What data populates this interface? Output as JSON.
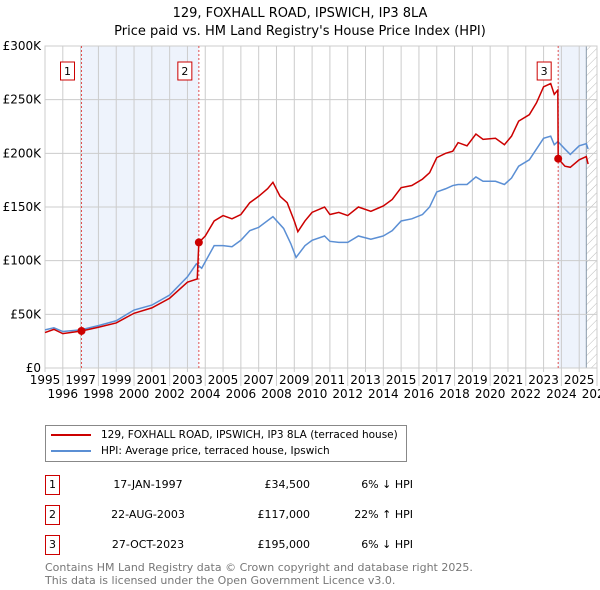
{
  "chart_data": {
    "type": "line",
    "title": "129, FOXHALL ROAD, IPSWICH, IP3 8LA",
    "subtitle": "Price paid vs. HM Land Registry's House Price Index (HPI)",
    "xlim": [
      1995,
      2026
    ],
    "ylim": [
      0,
      300000
    ],
    "x_ticks": [
      "1995",
      "1996",
      "1997",
      "1998",
      "1999",
      "2000",
      "2001",
      "2002",
      "2003",
      "2004",
      "2005",
      "2006",
      "2007",
      "2008",
      "2009",
      "2010",
      "2011",
      "2012",
      "2013",
      "2014",
      "2015",
      "2016",
      "2017",
      "2018",
      "2019",
      "2020",
      "2021",
      "2022",
      "2023",
      "2024",
      "2025",
      "2026"
    ],
    "y_ticks": [
      {
        "v": 0,
        "label": "£0"
      },
      {
        "v": 50000,
        "label": "£50K"
      },
      {
        "v": 100000,
        "label": "£100K"
      },
      {
        "v": 150000,
        "label": "£150K"
      },
      {
        "v": 200000,
        "label": "£200K"
      },
      {
        "v": 250000,
        "label": "£250K"
      },
      {
        "v": 300000,
        "label": "£300K"
      }
    ],
    "grid": true,
    "series": [
      {
        "name": "129, FOXHALL ROAD, IPSWICH, IP3 8LA (terraced house)",
        "color": "#cc0000",
        "x": [
          1995,
          1995.5,
          1996,
          1997.05,
          1998,
          1999,
          2000,
          2001,
          2002,
          2003,
          2003.55,
          2003.64,
          2004,
          2004.5,
          2005,
          2005.5,
          2006,
          2006.5,
          2007,
          2007.5,
          2007.8,
          2008.2,
          2008.6,
          2009,
          2009.2,
          2009.6,
          2010,
          2010.7,
          2011,
          2011.5,
          2012,
          2012.6,
          2013.3,
          2014,
          2014.5,
          2015,
          2015.6,
          2016.2,
          2016.6,
          2017,
          2017.5,
          2017.9,
          2018.2,
          2018.7,
          2019.2,
          2019.6,
          2020.3,
          2020.8,
          2021.2,
          2021.6,
          2022.2,
          2022.6,
          2023,
          2023.4,
          2023.6,
          2023.8,
          2023.82,
          2024.2,
          2024.5,
          2025,
          2025.4,
          2025.5
        ],
        "y": [
          33000,
          36000,
          32000,
          34500,
          38000,
          42000,
          51000,
          56000,
          65000,
          80000,
          83000,
          117000,
          123000,
          137000,
          142000,
          139000,
          143000,
          154000,
          160000,
          167000,
          173000,
          160000,
          154000,
          137000,
          127000,
          137000,
          145000,
          150000,
          143000,
          145000,
          142000,
          150000,
          146000,
          151000,
          157000,
          168000,
          170000,
          176000,
          182000,
          196000,
          200000,
          202000,
          210000,
          207000,
          218000,
          213000,
          214000,
          208000,
          216000,
          230000,
          236000,
          247000,
          262000,
          265000,
          255000,
          259000,
          195000,
          188000,
          187000,
          194000,
          197000,
          190000
        ]
      },
      {
        "name": "HPI: Average price, terraced house, Ipswich",
        "color": "#5b8fd4",
        "x": [
          1995,
          1995.5,
          1996,
          1997,
          1998,
          1999,
          2000,
          2001,
          2002,
          2003,
          2003.5,
          2003.8,
          2004.5,
          2005,
          2005.5,
          2006,
          2006.5,
          2007,
          2007.8,
          2008.4,
          2008.8,
          2009.1,
          2009.6,
          2010,
          2010.7,
          2011,
          2011.5,
          2012,
          2012.6,
          2013.3,
          2014,
          2014.5,
          2015,
          2015.6,
          2016.2,
          2016.6,
          2017,
          2017.5,
          2017.9,
          2018.2,
          2018.7,
          2019.2,
          2019.6,
          2020.3,
          2020.8,
          2021.2,
          2021.6,
          2022.2,
          2022.6,
          2023,
          2023.4,
          2023.6,
          2023.8,
          2024.2,
          2024.5,
          2025,
          2025.4,
          2025.5
        ],
        "y": [
          35500,
          37500,
          34000,
          35500,
          39500,
          44000,
          54000,
          58600,
          68000,
          85000,
          97000,
          93000,
          114000,
          114000,
          113000,
          119000,
          128000,
          131000,
          141000,
          130000,
          116000,
          103000,
          114000,
          119000,
          123000,
          118000,
          117000,
          117000,
          123000,
          120000,
          123000,
          128000,
          137000,
          139000,
          143000,
          150000,
          164000,
          167000,
          170000,
          171000,
          171000,
          178000,
          174000,
          174000,
          171000,
          177000,
          188000,
          194000,
          204000,
          214000,
          216000,
          208000,
          211000,
          204000,
          199000,
          207000,
          209000,
          204000
        ]
      }
    ],
    "sales": [
      {
        "label": "1",
        "x": 1997.05,
        "y": 34500,
        "date": "17-JAN-1997",
        "price": "£34,500",
        "hpi": "6% ↓ HPI"
      },
      {
        "label": "2",
        "x": 2003.64,
        "y": 117000,
        "date": "22-AUG-2003",
        "price": "£117,000",
        "hpi": "22% ↑ HPI"
      },
      {
        "label": "3",
        "x": 2023.82,
        "y": 195000,
        "date": "27-OCT-2023",
        "price": "£195,000",
        "hpi": "6% ↓ HPI"
      }
    ],
    "shaded_ranges": [
      [
        1997.05,
        2003.64
      ],
      [
        2023.82,
        2025.4
      ]
    ],
    "hatched_from": 2025.4,
    "legend_placement": "below"
  },
  "title": {
    "line1": "129, FOXHALL ROAD, IPSWICH, IP3 8LA",
    "line2": "Price paid vs. HM Land Registry's House Price Index (HPI)"
  },
  "legend": {
    "red": "129, FOXHALL ROAD, IPSWICH, IP3 8LA (terraced house)",
    "blue": "HPI: Average price, terraced house, Ipswich"
  },
  "footer": {
    "line1": "Contains HM Land Registry data © Crown copyright and database right 2025.",
    "line2": "This data is licensed under the Open Government Licence v3.0."
  }
}
